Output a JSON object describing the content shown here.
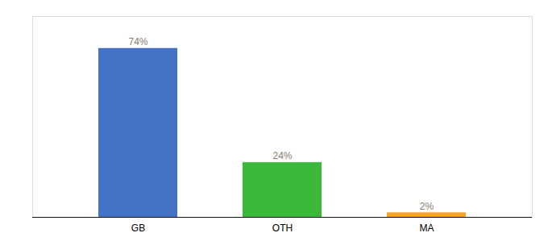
{
  "chart_data": {
    "type": "bar",
    "categories": [
      "GB",
      "OTH",
      "MA"
    ],
    "values": [
      74,
      24,
      2
    ],
    "value_labels": [
      "74%",
      "24%",
      "2%"
    ],
    "colors": [
      "#4472c4",
      "#3ab83a",
      "#f5a623"
    ],
    "ylim": [
      0,
      88
    ],
    "data_labels": true,
    "tick_labels": "x",
    "grid": false
  }
}
